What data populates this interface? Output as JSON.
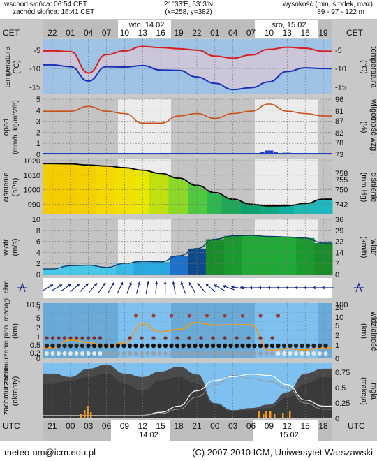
{
  "header": {
    "sunrise": "wschód słońca: 06:54 CET",
    "sunset": "zachód słońca: 16:41 CET",
    "coord_line1": "21°33'E, 53°3'N",
    "coord_line2": "(x=258, y=382)",
    "elev_line1": "wysokość (min, środek, max)",
    "elev_line2": "89 - 97 - 122 m"
  },
  "timezone_left": "CET",
  "timezone_right": "CET",
  "utc_left": "UTC",
  "utc_right": "UTC",
  "day1_label": "wto, 14.02",
  "day2_label": "śro, 15.02",
  "day1_bottom": "14.02",
  "day2_bottom": "15.02",
  "top_hours": [
    "22",
    "01",
    "04",
    "07",
    "10",
    "13",
    "16",
    "19",
    "22",
    "01",
    "04",
    "07",
    "10",
    "13",
    "16",
    "19"
  ],
  "bottom_hours": [
    "21",
    "00",
    "03",
    "06",
    "09",
    "12",
    "15",
    "18",
    "21",
    "00",
    "03",
    "06",
    "09",
    "12",
    "15",
    "18"
  ],
  "footer": {
    "email": "meteo-um@icm.edu.pl",
    "copyright": "(C) 2007-2010 ICM, Uniwersytet Warszawski"
  },
  "colors": {
    "frame_bg": "#c8c8c8",
    "chart_gray": "#d9d9d9",
    "night": "#bdbdbd",
    "temp_band": "#9ec3e6",
    "temp_max": "#d81e1e",
    "temp_min": "#1a2fb4",
    "humidity": "#c8501a",
    "precip": "#1e40c8",
    "pressure_line": "#000000",
    "wind_fill_light": "#48c8e8",
    "wind_fill_dark": "#1a8c2a",
    "arrow": "#1a2a8c",
    "sky_blue": "#7ec0f0",
    "cloud": "#4a4a4a",
    "fog": "#f09a20"
  },
  "chart_data": [
    {
      "type": "line",
      "panel": "temperature",
      "ylabel": "temperatura",
      "unit": "(°C)",
      "yticks": [
        -5,
        -10,
        -15
      ],
      "ylim": [
        -17,
        -2
      ],
      "x": [
        "22",
        "01",
        "04",
        "07",
        "10",
        "13",
        "16",
        "19",
        "22",
        "01",
        "04",
        "07",
        "10",
        "13",
        "16",
        "19"
      ],
      "series": [
        {
          "values": [
            -5.2,
            -5.4,
            -11.2,
            -6.2,
            -5.2,
            -4.0,
            -4.3,
            -4.6,
            -5.0,
            -6.6,
            -7.2,
            -6.3,
            -4.8,
            -4.2,
            -4.5,
            -5.3
          ]
        },
        {
          "values": [
            -9.0,
            -9.5,
            -13.4,
            -9.5,
            -9.6,
            -9.2,
            -10.4,
            -10.5,
            -12.3,
            -14.0,
            -15.7,
            -15.2,
            -13.6,
            -10.8,
            -9.8,
            -10.0
          ]
        }
      ]
    },
    {
      "type": "line",
      "panel": "precipitation_humidity",
      "ylabel": "opad",
      "unit": "(mm/h, kg/m^2/h)",
      "ylabel_right": "wilgotność wzgl.",
      "unit_right": "(%)",
      "yticks": [
        0,
        1,
        2,
        3,
        4,
        5
      ],
      "yticks_right": [
        73,
        78,
        82,
        87,
        91,
        96
      ],
      "ylim": [
        0,
        5
      ],
      "ylim_right": [
        73,
        96
      ],
      "x": [
        "22",
        "01",
        "04",
        "07",
        "10",
        "13",
        "16",
        "19",
        "22",
        "01",
        "04",
        "07",
        "10",
        "13",
        "16",
        "19"
      ],
      "series": [
        {
          "values": [
            91,
            91,
            93,
            91,
            90,
            86,
            86,
            89,
            90,
            88,
            90,
            91,
            94,
            91,
            90,
            89
          ]
        },
        {
          "values": [
            0,
            0,
            0,
            0,
            0,
            0,
            0,
            0,
            0,
            0,
            0,
            0.1,
            0.35,
            0.15,
            0,
            0
          ]
        }
      ]
    },
    {
      "type": "area",
      "panel": "pressure",
      "ylabel": "ciśnienie",
      "unit": "(hPa)",
      "ylabel_right": "ciśnienie",
      "unit_right": "(mm Hg)",
      "yticks": [
        990,
        1000,
        1010,
        1020
      ],
      "yticks_right": [
        742,
        750,
        755,
        758
      ],
      "ylim": [
        983,
        1021
      ],
      "x": [
        "22",
        "01",
        "04",
        "07",
        "10",
        "13",
        "16",
        "19",
        "22",
        "01",
        "04",
        "07",
        "10",
        "13",
        "16",
        "19"
      ],
      "values": [
        1018,
        1017.8,
        1017,
        1016.3,
        1015.2,
        1013.5,
        1011.2,
        1008,
        1003,
        998,
        993.5,
        990,
        988.8,
        989,
        990.5,
        993.5
      ]
    },
    {
      "type": "area",
      "panel": "wind",
      "ylabel": "wiatr",
      "unit": "(m/s)",
      "ylabel_right": "wiatr",
      "unit_right": "(km/h)",
      "yticks": [
        0,
        2,
        4,
        6,
        8,
        10
      ],
      "yticks_right": [
        0,
        7,
        14,
        22,
        29,
        36
      ],
      "ylim": [
        0,
        10
      ],
      "x": [
        "22",
        "01",
        "04",
        "07",
        "10",
        "13",
        "16",
        "19",
        "22",
        "01",
        "04",
        "07",
        "10",
        "13",
        "16",
        "19"
      ],
      "values": [
        1.0,
        1.6,
        1.7,
        1.3,
        2.0,
        2.4,
        2.3,
        3.4,
        4.7,
        6.4,
        7.0,
        7.1,
        6.9,
        6.8,
        6.6,
        5.7
      ]
    },
    {
      "type": "scatter",
      "panel": "visibility",
      "ylabel": "zachmurzenie pion. rozciągł. chm.",
      "unit": "(km)",
      "ylabel_right": "widzialność",
      "unit_right": "(km)",
      "yticks": [
        0,
        0.2,
        0.5,
        1.0,
        2.0,
        5.0,
        7.0,
        10.5
      ],
      "yticks_right": [
        0,
        1,
        2,
        5,
        10,
        20,
        100
      ],
      "x": [
        "22",
        "01",
        "04",
        "07",
        "10",
        "13",
        "16",
        "19",
        "22",
        "01",
        "04",
        "07",
        "10",
        "13",
        "16",
        "19"
      ],
      "values": [
        2.0,
        3.5,
        3.0,
        2.2,
        3.0,
        6.5,
        5.0,
        5.5,
        6.8,
        6.3,
        6.4,
        6.4,
        1.5,
        1.8,
        1.6,
        2.0
      ]
    },
    {
      "type": "area",
      "panel": "clouds_fog",
      "ylabel": "zachmurzenie",
      "unit": "(oktanty)",
      "ylabel_right": "mgła",
      "unit_right": "(frakcja)",
      "yticks_right": [
        0,
        0.25,
        0.5,
        0.75
      ],
      "x": [
        "22",
        "01",
        "04",
        "07",
        "10",
        "13",
        "16",
        "19",
        "22",
        "01",
        "04",
        "07",
        "10",
        "13",
        "16",
        "19"
      ],
      "values": [
        6.5,
        6.0,
        7.2,
        7.8,
        6.5,
        6.0,
        6.8,
        7.5,
        6.4,
        2.2,
        1.2,
        1.5,
        2.0,
        3.8,
        6.5,
        7.2
      ]
    }
  ]
}
